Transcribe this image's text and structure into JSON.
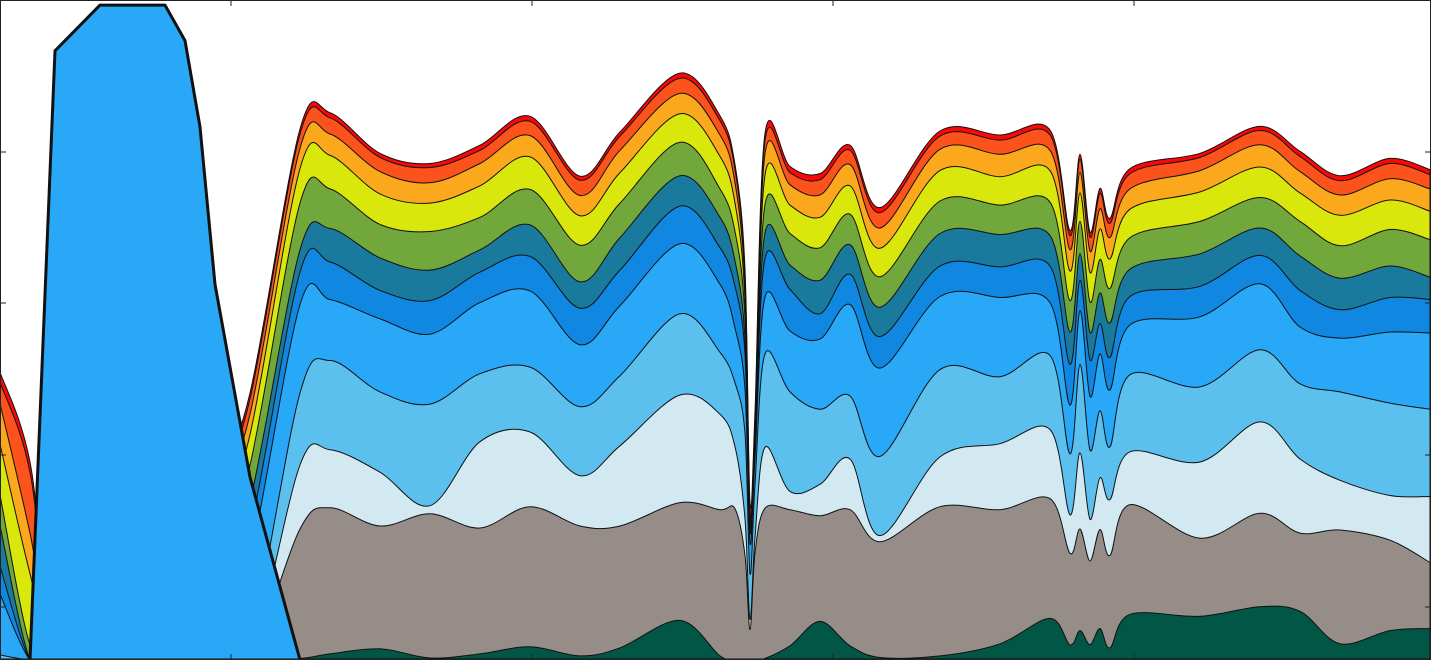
{
  "chart_data": {
    "type": "area",
    "stacked": true,
    "title": "",
    "xlabel": "",
    "ylabel": "",
    "xlim": [
      0,
      1430
    ],
    "ylim": [
      0,
      13
    ],
    "grid": false,
    "legend": "none",
    "x": [
      0,
      30,
      55,
      100,
      140,
      165,
      185,
      200,
      215,
      250,
      300,
      330,
      380,
      430,
      480,
      530,
      580,
      620,
      680,
      720,
      735,
      745,
      750,
      755,
      765,
      790,
      820,
      850,
      880,
      940,
      1000,
      1050,
      1070,
      1080,
      1090,
      1100,
      1110,
      1130,
      1200,
      1260,
      1300,
      1340,
      1390,
      1430
    ],
    "series": [
      {
        "color": "#025645",
        "values": [
          0,
          0,
          0,
          0,
          0,
          0,
          0,
          0,
          0,
          0,
          0.03,
          0.12,
          0.22,
          0.04,
          0.12,
          0.26,
          0.08,
          0.24,
          0.78,
          0.08,
          0.02,
          0.01,
          0,
          0.01,
          0.03,
          0.28,
          0.76,
          0.28,
          0.05,
          0.08,
          0.32,
          0.82,
          0.3,
          0.58,
          0.3,
          0.62,
          0.24,
          0.9,
          0.86,
          1.05,
          0.96,
          0.32,
          0.58,
          0.62
        ]
      },
      {
        "color": "#968d89",
        "values": [
          0,
          0,
          0,
          0,
          0,
          0,
          0,
          0,
          0,
          0,
          2.55,
          2.88,
          2.42,
          2.84,
          2.48,
          2.76,
          2.56,
          2.4,
          2.32,
          2.88,
          2.96,
          2.05,
          0.6,
          2.1,
          2.96,
          2.68,
          2.08,
          2.68,
          2.28,
          2.94,
          2.64,
          2.36,
          1.8,
          2.0,
          1.65,
          1.95,
          1.82,
          2.16,
          1.54,
          1.84,
          1.54,
          2.24,
          1.78,
          1.3
        ]
      },
      {
        "color": "#d3e9f1",
        "values": [
          0,
          0,
          0,
          0,
          0,
          0,
          0,
          0,
          0,
          0,
          1.26,
          1.14,
          1.06,
          0.16,
          1.7,
          1.47,
          0.99,
          1.58,
          2.12,
          1.88,
          1.22,
          0.72,
          0.2,
          0.3,
          1.2,
          0.36,
          0.62,
          1.0,
          0.12,
          0.98,
          1.3,
          1.36,
          0.76,
          1.5,
          0.82,
          1.02,
          1.1,
          1.04,
          1.5,
          1.8,
          1.46,
          0.98,
          0.88,
          1.3
        ]
      },
      {
        "color": "#5bc0ee",
        "values": [
          0.1,
          0,
          0,
          0,
          0,
          0,
          0,
          0,
          0,
          0.4,
          1.42,
          1.76,
          1.58,
          2.0,
          1.34,
          1.28,
          1.36,
          1.38,
          1.6,
          1.22,
          1.26,
          1.68,
          0.9,
          1.04,
          1.84,
          1.96,
          1.48,
          1.24,
          1.56,
          1.72,
          1.32,
          1.46,
          1.2,
          1.74,
          1.36,
          1.32,
          1.04,
          1.52,
          1.48,
          1.42,
          1.48,
          1.74,
          1.82,
          1.72
        ]
      },
      {
        "color": "#29a8f8",
        "values": [
          1.2,
          0,
          0,
          0,
          0,
          0,
          0,
          0,
          0.2,
          1.58,
          1.74,
          1.2,
          1.44,
          1.38,
          1.4,
          1.5,
          1.22,
          1.38,
          1.38,
          1.34,
          1.08,
          0.86,
          0.6,
          0.5,
          1.12,
          1.2,
          1.38,
          1.8,
          1.74,
          1.44,
          1.56,
          1.04,
          0.96,
          1.06,
          1.06,
          1.12,
          1.12,
          0.98,
          1.38,
          1.3,
          1.12,
          1.06,
          1.4,
          1.5
        ]
      },
      {
        "color": "#1088e2",
        "values": [
          0.55,
          0,
          0,
          0,
          0,
          0,
          0,
          0.4,
          0.44,
          0.56,
          0.64,
          0.74,
          0.56,
          0.66,
          0.6,
          0.68,
          0.72,
          0.7,
          0.74,
          0.72,
          0.82,
          0.7,
          0.24,
          0.22,
          0.76,
          0.82,
          0.5,
          0.6,
          0.62,
          0.6,
          0.6,
          0.72,
          0.8,
          0.6,
          0.72,
          0.6,
          0.64,
          0.56,
          0.6,
          0.56,
          0.72,
          0.56,
          0.68,
          0.66
        ]
      },
      {
        "color": "#1a7a9d",
        "values": [
          0.8,
          0,
          0,
          0,
          0,
          0,
          0,
          0.28,
          0.66,
          0.58,
          0.44,
          0.66,
          0.64,
          0.6,
          0.44,
          0.62,
          0.52,
          0.64,
          0.6,
          0.6,
          0.5,
          0.3,
          0.1,
          0.16,
          0.5,
          0.48,
          0.66,
          0.58,
          0.58,
          0.64,
          0.64,
          0.6,
          0.64,
          0.52,
          0.54,
          0.6,
          0.68,
          0.54,
          0.64,
          0.54,
          0.68,
          0.62,
          0.62,
          0.44
        ]
      },
      {
        "color": "#72a73b",
        "values": [
          0.6,
          0.3,
          0,
          0,
          0,
          0,
          0,
          0.16,
          0.6,
          0.72,
          0.92,
          0.78,
          0.66,
          0.76,
          0.64,
          0.7,
          0.72,
          0.68,
          0.66,
          0.56,
          0.58,
          0.42,
          0.06,
          0.1,
          0.56,
          0.62,
          0.64,
          0.6,
          0.6,
          0.64,
          0.58,
          0.66,
          0.62,
          0.64,
          0.6,
          0.66,
          0.68,
          0.62,
          0.64,
          0.6,
          0.68,
          0.64,
          0.72,
          0.74
        ]
      },
      {
        "color": "#dae70c",
        "values": [
          1.0,
          1.4,
          0,
          0,
          0,
          0,
          0,
          0.56,
          0.54,
          0.6,
          0.68,
          0.66,
          0.6,
          0.56,
          0.62,
          0.64,
          0.58,
          0.6,
          0.56,
          0.64,
          0.56,
          0.34,
          0.04,
          0.06,
          0.58,
          0.56,
          0.6,
          0.56,
          0.56,
          0.6,
          0.56,
          0.62,
          0.58,
          0.56,
          0.58,
          0.6,
          0.58,
          0.56,
          0.58,
          0.6,
          0.56,
          0.6,
          0.58,
          0.56
        ]
      },
      {
        "color": "#fca81c",
        "values": [
          0.8,
          0.8,
          0,
          0,
          0,
          0,
          0,
          0.48,
          0.46,
          0.4,
          0.4,
          0.42,
          0.44,
          0.4,
          0.44,
          0.42,
          0.4,
          0.44,
          0.4,
          0.42,
          0.4,
          0.26,
          0.06,
          0.08,
          0.42,
          0.4,
          0.44,
          0.42,
          0.4,
          0.42,
          0.44,
          0.4,
          0.42,
          0.4,
          0.42,
          0.4,
          0.42,
          0.4,
          0.42,
          0.44,
          0.42,
          0.4,
          0.42,
          0.44
        ]
      },
      {
        "color": "#fc521c",
        "values": [
          0.42,
          1.2,
          0,
          0,
          0,
          0,
          0.5,
          0.36,
          0.3,
          0.3,
          0.28,
          0.32,
          0.28,
          0.3,
          0.26,
          0.28,
          0.3,
          0.28,
          0.3,
          0.28,
          0.26,
          0.2,
          0.1,
          0.12,
          0.26,
          0.24,
          0.3,
          0.28,
          0.3,
          0.26,
          0.28,
          0.3,
          0.28,
          0.26,
          0.28,
          0.3,
          0.28,
          0.3,
          0.26,
          0.28,
          0.3,
          0.28,
          0.3,
          0.28
        ]
      },
      {
        "color": "#fc0707",
        "values": [
          0.2,
          0.2,
          0.15,
          0,
          0,
          0,
          0.2,
          0.2,
          0.16,
          0.12,
          0.1,
          0.1,
          0.08,
          0.08,
          0.1,
          0.1,
          0.08,
          0.08,
          0.1,
          0.1,
          0.1,
          0.16,
          0.2,
          0.2,
          0.14,
          0.12,
          0.12,
          0.1,
          0.1,
          0.1,
          0.1,
          0.1,
          0.1,
          0.1,
          0.1,
          0.1,
          0.1,
          0.1,
          0.08,
          0.08,
          0.1,
          0.1,
          0.1,
          0.1
        ]
      }
    ],
    "overlay": {
      "color": "#29a8f8",
      "values": [
        0,
        0,
        12.0,
        12.9,
        12.9,
        12.9,
        12.2,
        10.5,
        7.4,
        3.6,
        0,
        0,
        0,
        0,
        0,
        0,
        0,
        0,
        0,
        0,
        0,
        0,
        0,
        0,
        0,
        0,
        0,
        0,
        0,
        0,
        0,
        0,
        0,
        0,
        0,
        0,
        0,
        0,
        0,
        0,
        0,
        0,
        0,
        0
      ]
    }
  }
}
